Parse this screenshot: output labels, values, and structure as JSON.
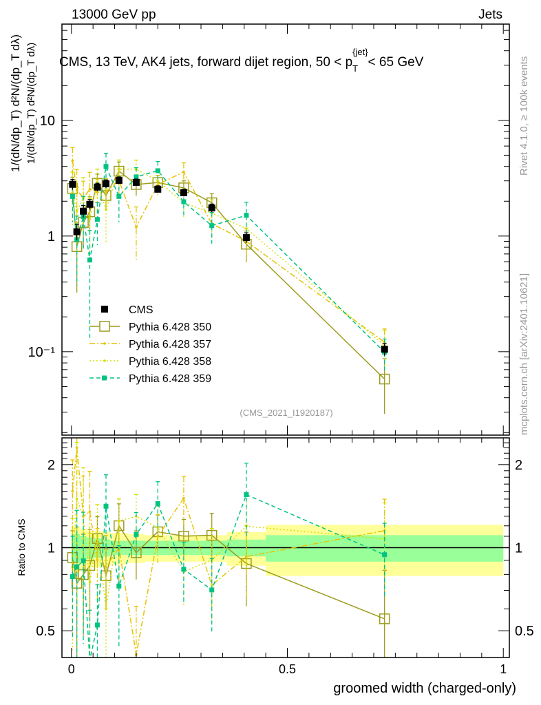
{
  "header": {
    "left": "13000 GeV pp",
    "right": "Jets",
    "title": "CMS, 13 TeV, AK4 jets, forward dijet region, 50 < p",
    "title_sub": "T",
    "title_sup": "{jet}",
    "title_end": "< 65 GeV",
    "analysis": "(CMS_2021_I1920187)"
  },
  "side": {
    "rivet": "Rivet 4.1.0, ≥ 100k events",
    "mcplots": "mcplots.cern.ch [arXiv:2401.10621]"
  },
  "labels": {
    "ylabel_main": "1/(dN/dp_T) d²N/(dp_T dλ)",
    "ylabel_ratio": "Ratio to CMS",
    "xlabel": "groomed width (charged-only)"
  },
  "colors": {
    "cms": "#000000",
    "p350": "#9c9c1e",
    "p357": "#e6c300",
    "p358": "#d2e000",
    "p359": "#00c382",
    "band_stat": "#99ff99",
    "band_total": "#ffff99"
  },
  "chart_data": [
    {
      "type": "line",
      "panel": "main",
      "title": "CMS, 13 TeV, AK4 jets, forward dijet region, 50 < p_T^{jet} < 65 GeV",
      "xlabel": "groomed width (charged-only)",
      "ylabel": "1/(dN/dp_T) d²N/(dp_T dλ)",
      "yscale": "log",
      "xlim": [
        -0.022,
        1.014
      ],
      "ylim": [
        0.019,
        68
      ],
      "xticks": [
        "0",
        "0.5",
        "1"
      ],
      "yticks": [
        "10⁻¹",
        "1",
        "10"
      ],
      "legend_position": "middle-left",
      "bin_edges": [
        0,
        0.005,
        0.02,
        0.035,
        0.05,
        0.07,
        0.09,
        0.13,
        0.17,
        0.23,
        0.29,
        0.36,
        0.45,
        1.0
      ],
      "x": [
        0.0025,
        0.0125,
        0.0275,
        0.0425,
        0.06,
        0.08,
        0.11,
        0.15,
        0.2,
        0.26,
        0.325,
        0.405,
        0.725
      ],
      "series": [
        {
          "name": "CMS",
          "key": "cms",
          "style": "data",
          "values": [
            2.8,
            1.09,
            1.64,
            1.88,
            2.65,
            2.83,
            3.03,
            2.91,
            2.54,
            2.37,
            1.75,
            0.97,
            0.105
          ],
          "rel_err": [
            0.1,
            0.15,
            0.12,
            0.1,
            0.08,
            0.08,
            0.07,
            0.07,
            0.07,
            0.07,
            0.08,
            0.1,
            0.12
          ]
        },
        {
          "name": "Pythia 6.428 350",
          "key": "p350",
          "style": "solid",
          "values": [
            2.58,
            0.81,
            1.31,
            1.62,
            2.86,
            2.24,
            3.64,
            2.79,
            2.9,
            2.61,
            1.94,
            0.85,
            0.058
          ],
          "rel_err": [
            0.25,
            0.6,
            0.4,
            0.35,
            0.2,
            0.25,
            0.2,
            0.2,
            0.15,
            0.15,
            0.2,
            0.3,
            0.5
          ]
        },
        {
          "name": "Pythia 6.428 357",
          "key": "p357",
          "style": "dashdot",
          "values": [
            4.48,
            2.51,
            2.13,
            2.54,
            2.39,
            2.41,
            3.03,
            1.19,
            2.79,
            3.58,
            1.28,
            0.9,
            0.121
          ],
          "rel_err": [
            0.3,
            0.5,
            0.4,
            0.4,
            0.3,
            0.3,
            0.25,
            0.5,
            0.2,
            0.2,
            0.25,
            0.3,
            0.3
          ]
        },
        {
          "name": "Pythia 6.428 358",
          "key": "p358",
          "style": "dotted",
          "values": [
            2.38,
            1.64,
            2.13,
            1.41,
            2.92,
            1.7,
            3.79,
            3.78,
            3.0,
            1.94,
            1.58,
            1.16,
            0.113
          ],
          "rel_err": [
            0.5,
            0.6,
            0.5,
            0.5,
            0.3,
            0.5,
            0.2,
            0.2,
            0.2,
            0.25,
            0.3,
            0.3,
            0.35
          ]
        },
        {
          "name": "Pythia 6.428 359",
          "key": "p359",
          "style": "dashed",
          "values": [
            2.2,
            0.93,
            1.47,
            0.62,
            1.39,
            4.0,
            2.2,
            3.25,
            3.67,
            1.98,
            1.23,
            1.51,
            0.099
          ],
          "rel_err": [
            0.4,
            0.6,
            0.5,
            0.8,
            0.4,
            0.3,
            0.4,
            0.2,
            0.2,
            0.25,
            0.3,
            0.3,
            0.3
          ]
        }
      ]
    },
    {
      "type": "line",
      "panel": "ratio",
      "ylabel": "Ratio to CMS",
      "yscale": "log",
      "ylim": [
        0.4,
        2.5
      ],
      "yticks": [
        "0.5",
        "1",
        "2"
      ],
      "reference": "CMS",
      "band_stat": [
        0.12,
        0.12,
        0.1,
        0.09,
        0.08,
        0.07,
        0.06,
        0.06,
        0.06,
        0.06,
        0.06,
        0.07,
        0.11
      ],
      "band_total": [
        0.2,
        0.19,
        0.17,
        0.15,
        0.15,
        0.14,
        0.13,
        0.12,
        0.11,
        0.11,
        0.11,
        0.14,
        0.21
      ]
    }
  ],
  "legend": [
    {
      "label": "CMS",
      "key": "cms",
      "style": "data"
    },
    {
      "label": "Pythia 6.428 350",
      "key": "p350",
      "style": "solid"
    },
    {
      "label": "Pythia 6.428 357",
      "key": "p357",
      "style": "dashdot"
    },
    {
      "label": "Pythia 6.428 358",
      "key": "p358",
      "style": "dotted"
    },
    {
      "label": "Pythia 6.428 359",
      "key": "p359",
      "style": "dashed"
    }
  ]
}
